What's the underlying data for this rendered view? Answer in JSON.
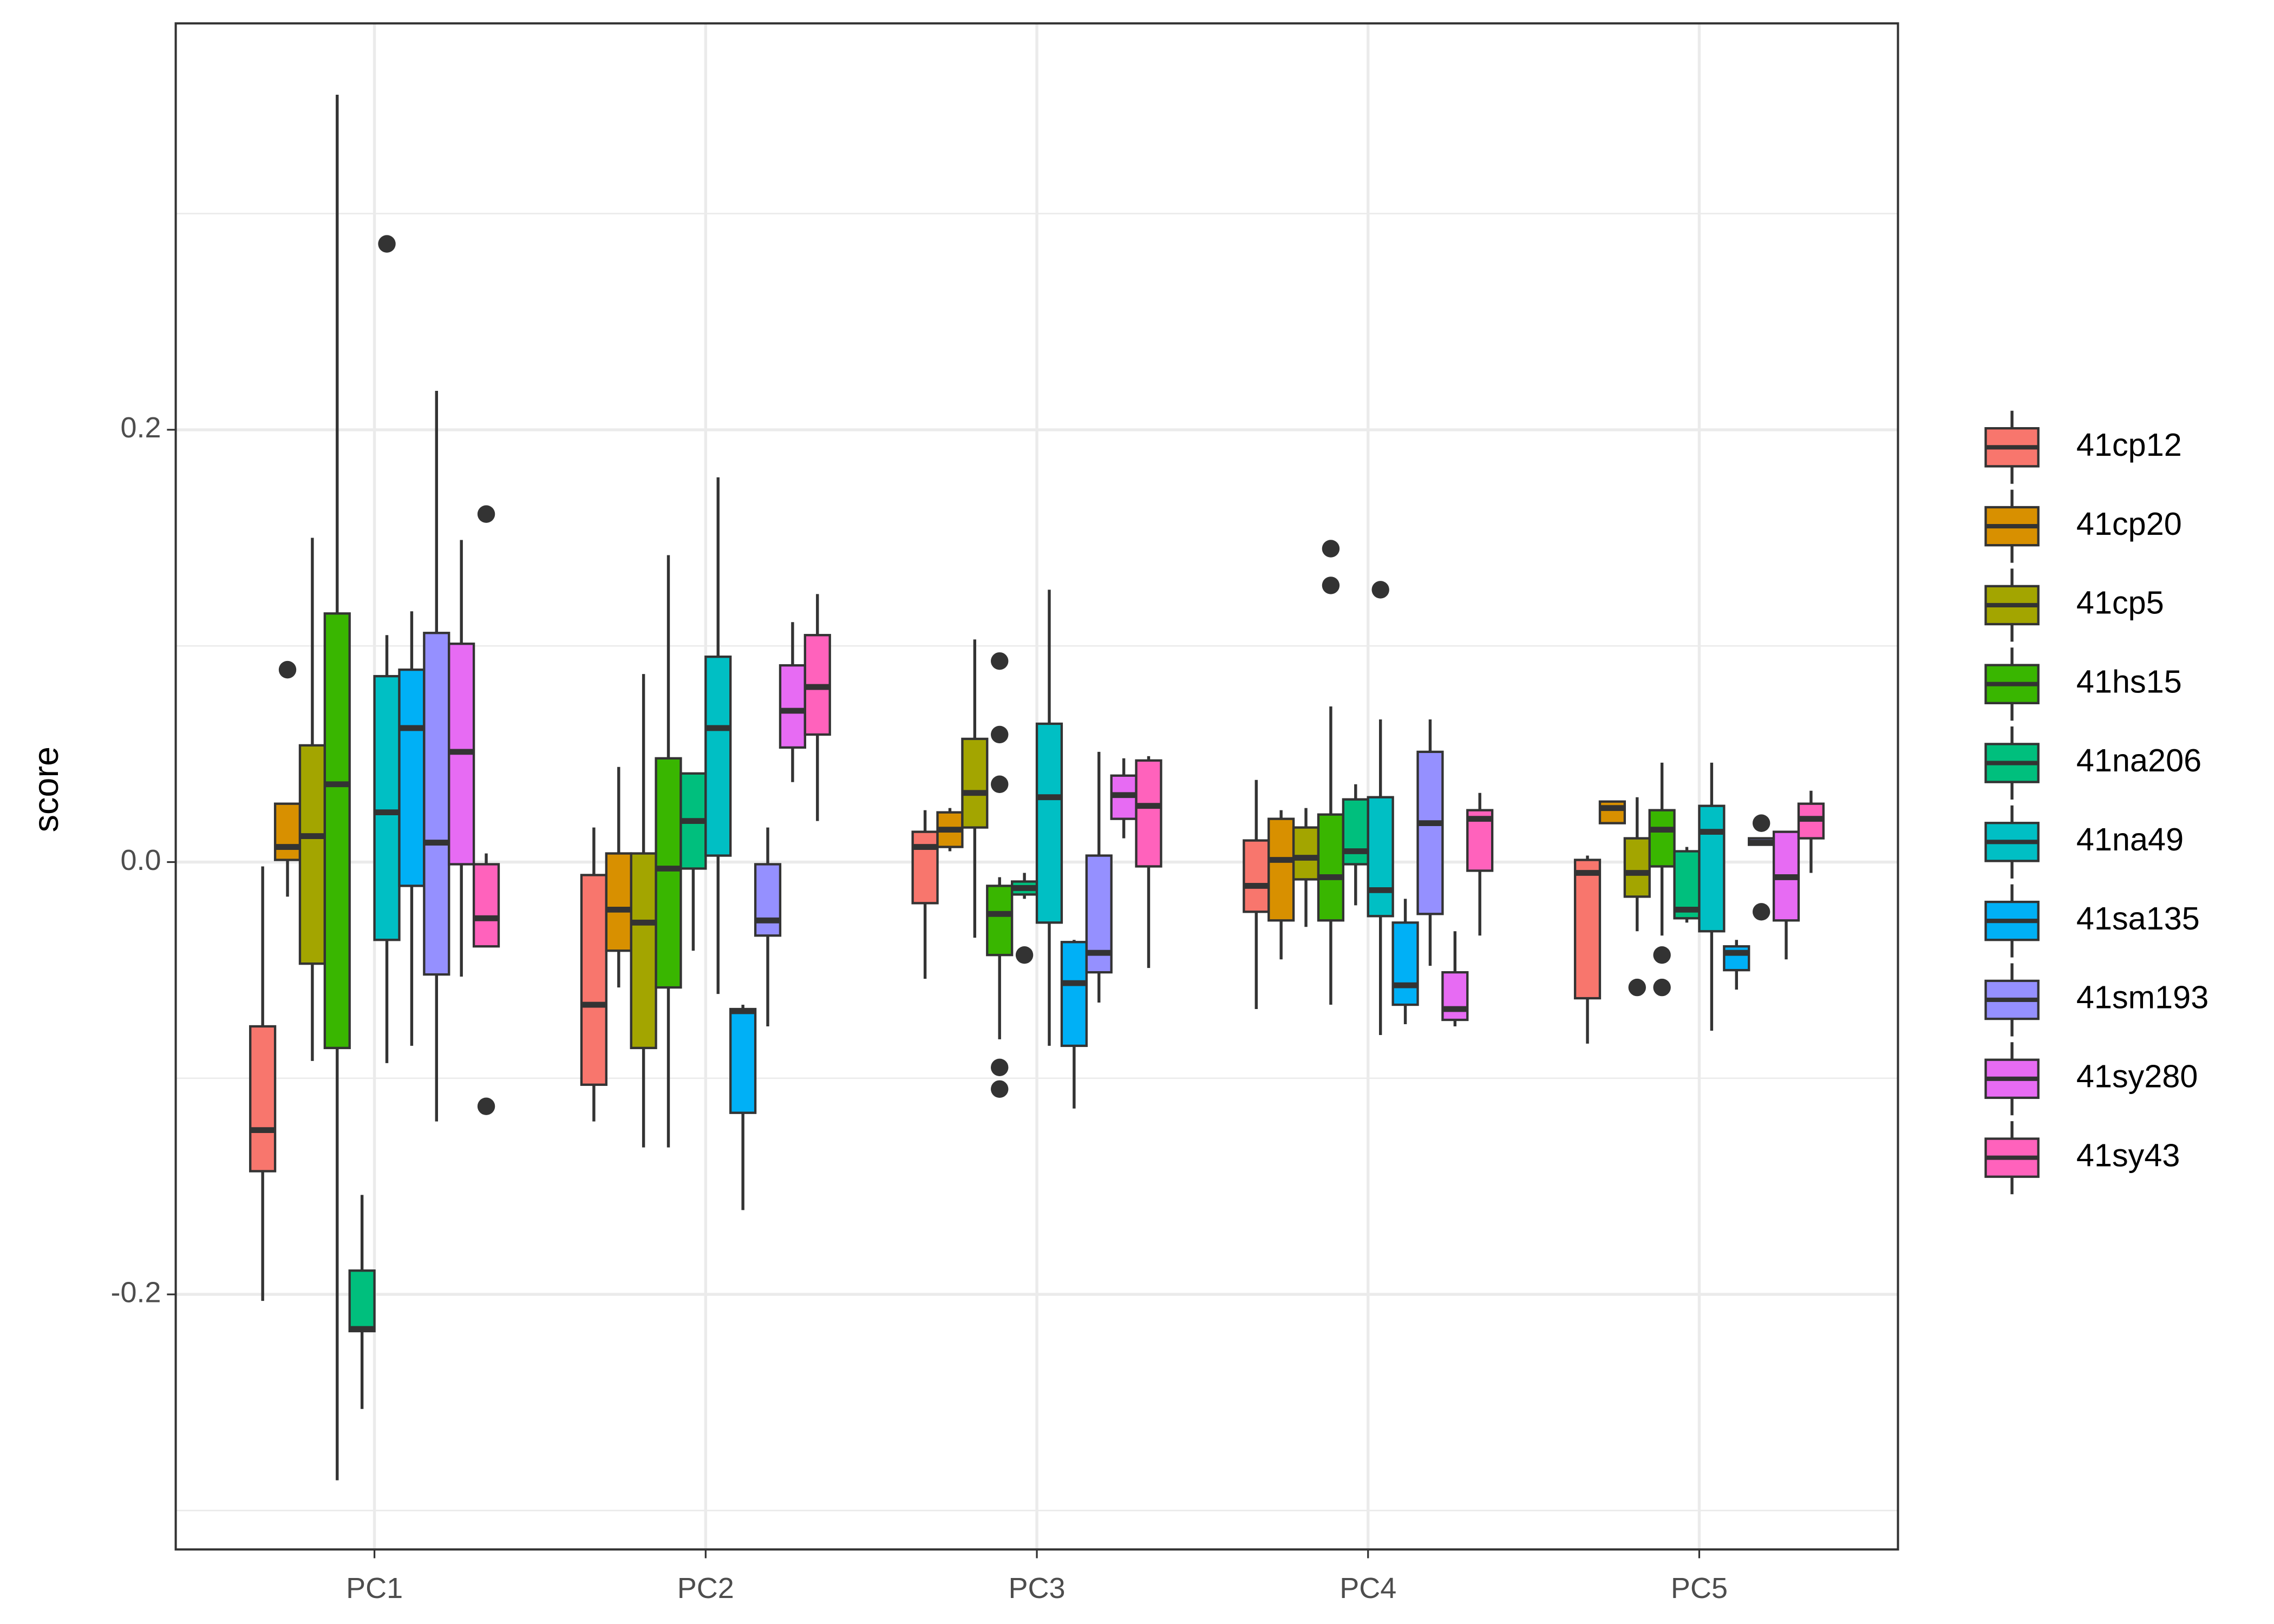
{
  "chart_data": {
    "type": "boxplot",
    "y_label": "score",
    "categories": [
      "PC1",
      "PC2",
      "PC3",
      "PC4",
      "PC5"
    ],
    "ylim": [
      -0.318,
      0.388
    ],
    "yticks": [
      -0.2,
      {
        "value": 0,
        "label": "0.0"
      },
      0.2
    ],
    "minor_yticks": [
      -0.3,
      -0.1,
      0.1,
      0.3
    ],
    "grid": true,
    "legend": "right",
    "series": [
      {
        "name": "41cp12",
        "color": "#F8766D",
        "min": [
          -0.203,
          -0.12,
          -0.054,
          -0.068,
          -0.084
        ],
        "q1": [
          -0.143,
          -0.103,
          -0.019,
          -0.023,
          -0.063
        ],
        "median": [
          -0.124,
          -0.066,
          0.007,
          -0.011,
          -0.005
        ],
        "q3": [
          -0.076,
          -0.006,
          0.014,
          0.01,
          0.001
        ],
        "max": [
          -0.002,
          0.016,
          0.024,
          0.038,
          0.003
        ],
        "outliers": [
          [],
          [],
          [],
          [],
          []
        ]
      },
      {
        "name": "41cp20",
        "color": "#D89000",
        "min": [
          -0.016,
          -0.058,
          0.005,
          -0.045,
          0.018
        ],
        "q1": [
          0.001,
          -0.041,
          0.007,
          -0.027,
          0.018
        ],
        "median": [
          0.007,
          -0.022,
          0.015,
          0.001,
          0.025
        ],
        "q3": [
          0.027,
          0.004,
          0.023,
          0.02,
          0.028
        ],
        "max": [
          0.027,
          0.044,
          0.025,
          0.024,
          0.028
        ],
        "outliers": [
          [
            0.089
          ],
          [],
          [],
          [],
          []
        ]
      },
      {
        "name": "41cp5",
        "color": "#A3A500",
        "min": [
          -0.092,
          -0.132,
          -0.035,
          -0.03,
          -0.032
        ],
        "q1": [
          -0.047,
          -0.086,
          0.016,
          -0.008,
          -0.016
        ],
        "median": [
          0.012,
          -0.028,
          0.032,
          0.002,
          -0.005
        ],
        "q3": [
          0.054,
          0.004,
          0.057,
          0.016,
          0.011
        ],
        "max": [
          0.15,
          0.087,
          0.103,
          0.025,
          0.03
        ],
        "outliers": [
          [],
          [],
          [],
          [],
          [
            -0.058
          ]
        ]
      },
      {
        "name": "41hs15",
        "color": "#39B600",
        "min": [
          -0.286,
          -0.132,
          -0.082,
          -0.066,
          -0.034
        ],
        "q1": [
          -0.086,
          -0.058,
          -0.043,
          -0.027,
          -0.002
        ],
        "median": [
          0.036,
          -0.003,
          -0.024,
          -0.007,
          0.015
        ],
        "q3": [
          0.115,
          0.048,
          -0.011,
          0.022,
          0.024
        ],
        "max": [
          0.355,
          0.142,
          -0.007,
          0.072,
          0.046
        ],
        "outliers": [
          [],
          [],
          [
            0.093,
            0.059,
            0.036,
            -0.095,
            -0.105
          ],
          [
            0.145,
            0.128
          ],
          [
            -0.043,
            -0.058
          ]
        ]
      },
      {
        "name": "41na206",
        "color": "#00BF7D",
        "min": [
          -0.253,
          -0.041,
          -0.017,
          -0.02,
          -0.028
        ],
        "q1": [
          -0.217,
          -0.003,
          -0.015,
          -0.001,
          -0.026
        ],
        "median": [
          -0.216,
          0.019,
          -0.012,
          0.005,
          -0.022
        ],
        "q3": [
          -0.189,
          0.041,
          -0.009,
          0.029,
          0.005
        ],
        "max": [
          -0.154,
          0.041,
          -0.005,
          0.036,
          0.007
        ],
        "outliers": [
          [],
          [],
          [
            -0.043
          ],
          [],
          []
        ]
      },
      {
        "name": "41na49",
        "color": "#00BFC4",
        "min": [
          -0.093,
          -0.061,
          -0.085,
          -0.08,
          -0.078
        ],
        "q1": [
          -0.036,
          0.003,
          -0.028,
          -0.025,
          -0.032
        ],
        "median": [
          0.023,
          0.062,
          0.03,
          -0.013,
          0.014
        ],
        "q3": [
          0.086,
          0.095,
          0.064,
          0.03,
          0.026
        ],
        "max": [
          0.105,
          0.178,
          0.126,
          0.066,
          0.046
        ],
        "outliers": [
          [
            0.286
          ],
          [],
          [],
          [
            0.126
          ],
          []
        ]
      },
      {
        "name": "41sa135",
        "color": "#00B0F6",
        "min": [
          -0.085,
          -0.161,
          -0.114,
          -0.075,
          -0.059
        ],
        "q1": [
          -0.011,
          -0.116,
          -0.085,
          -0.066,
          -0.05
        ],
        "median": [
          0.062,
          -0.069,
          -0.056,
          -0.057,
          -0.042
        ],
        "q3": [
          0.089,
          -0.068,
          -0.037,
          -0.028,
          -0.039
        ],
        "max": [
          0.116,
          -0.066,
          -0.036,
          -0.017,
          -0.036
        ],
        "outliers": [
          [],
          [],
          [],
          [],
          []
        ]
      },
      {
        "name": "41sm193",
        "color": "#9590FF",
        "min": [
          -0.12,
          -0.076,
          -0.065,
          -0.048,
          0.008
        ],
        "q1": [
          -0.052,
          -0.034,
          -0.051,
          -0.024,
          0.008
        ],
        "median": [
          0.009,
          -0.027,
          -0.042,
          0.018,
          0.009
        ],
        "q3": [
          0.106,
          -0.001,
          0.003,
          0.051,
          0.011
        ],
        "max": [
          0.218,
          0.016,
          0.051,
          0.066,
          0.011
        ],
        "outliers": [
          [],
          [],
          [],
          [],
          [
            0.018,
            -0.023
          ]
        ]
      },
      {
        "name": "41sy280",
        "color": "#E76BF3",
        "min": [
          -0.053,
          0.037,
          0.011,
          -0.076,
          -0.045
        ],
        "q1": [
          -0.001,
          0.053,
          0.02,
          -0.073,
          -0.027
        ],
        "median": [
          0.051,
          0.07,
          0.031,
          -0.068,
          -0.007
        ],
        "q3": [
          0.101,
          0.091,
          0.04,
          -0.051,
          0.014
        ],
        "max": [
          0.149,
          0.111,
          0.048,
          -0.032,
          0.014
        ],
        "outliers": [
          [],
          [],
          [],
          [],
          []
        ]
      },
      {
        "name": "41sy43",
        "color": "#FF62BC",
        "min": [
          -0.039,
          0.019,
          -0.049,
          -0.034,
          -0.005
        ],
        "q1": [
          -0.039,
          0.059,
          -0.002,
          -0.004,
          0.011
        ],
        "median": [
          -0.026,
          0.081,
          0.026,
          0.02,
          0.02
        ],
        "q3": [
          -0.001,
          0.105,
          0.047,
          0.024,
          0.027
        ],
        "max": [
          0.004,
          0.124,
          0.049,
          0.032,
          0.033
        ],
        "outliers": [
          [
            0.161,
            -0.113
          ],
          [],
          [],
          [],
          []
        ]
      }
    ]
  }
}
